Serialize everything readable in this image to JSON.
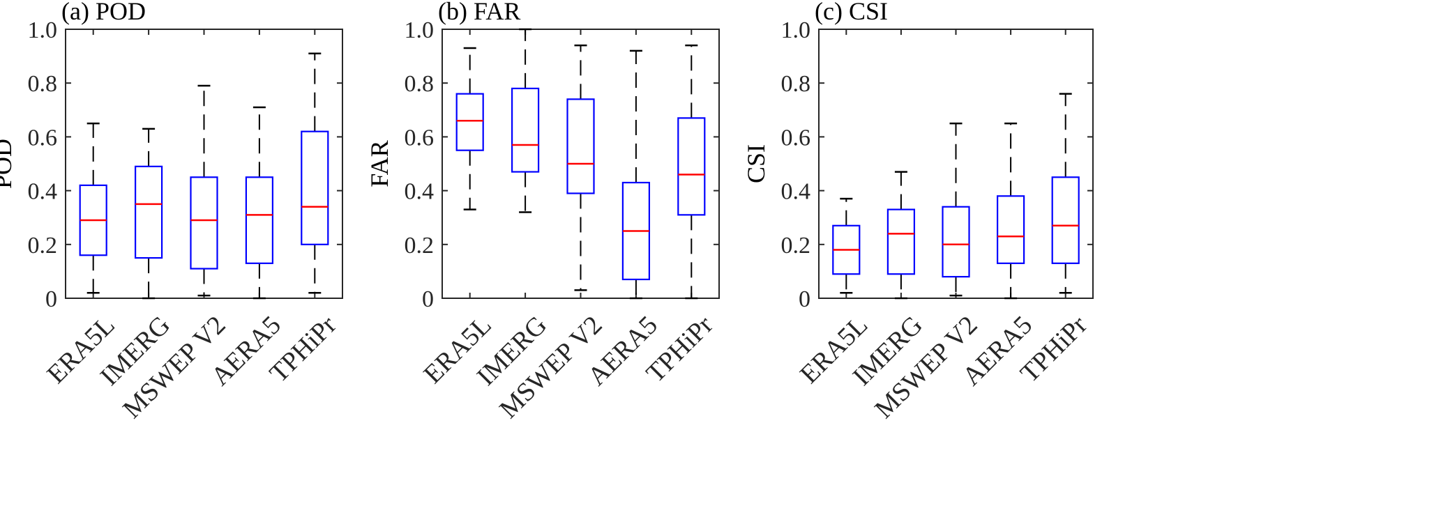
{
  "chart_data": [
    {
      "type": "box",
      "title": "(a) POD",
      "ylabel": "POD",
      "ylim": [
        0,
        1
      ],
      "yticks": [
        0,
        0.2,
        0.4,
        0.6,
        0.8,
        1.0
      ],
      "ytick_labels": [
        "0",
        "0.2",
        "0.4",
        "0.6",
        "0.8",
        "1.0"
      ],
      "categories": [
        "ERA5L",
        "IMERG",
        "MSWEP V2",
        "AERA5",
        "TPHiPr"
      ],
      "boxes": [
        {
          "whisker_low": 0.02,
          "q1": 0.16,
          "median": 0.29,
          "q3": 0.42,
          "whisker_high": 0.65
        },
        {
          "whisker_low": 0.0,
          "q1": 0.15,
          "median": 0.35,
          "q3": 0.49,
          "whisker_high": 0.63
        },
        {
          "whisker_low": 0.01,
          "q1": 0.11,
          "median": 0.29,
          "q3": 0.45,
          "whisker_high": 0.79
        },
        {
          "whisker_low": 0.0,
          "q1": 0.13,
          "median": 0.31,
          "q3": 0.45,
          "whisker_high": 0.71
        },
        {
          "whisker_low": 0.02,
          "q1": 0.2,
          "median": 0.34,
          "q3": 0.62,
          "whisker_high": 0.91
        }
      ]
    },
    {
      "type": "box",
      "title": "(b) FAR",
      "ylabel": "FAR",
      "ylim": [
        0,
        1
      ],
      "yticks": [
        0,
        0.2,
        0.4,
        0.6,
        0.8,
        1.0
      ],
      "ytick_labels": [
        "0",
        "0.2",
        "0.4",
        "0.6",
        "0.8",
        "1.0"
      ],
      "categories": [
        "ERA5L",
        "IMERG",
        "MSWEP V2",
        "AERA5",
        "TPHiPr"
      ],
      "boxes": [
        {
          "whisker_low": 0.33,
          "q1": 0.55,
          "median": 0.66,
          "q3": 0.76,
          "whisker_high": 0.93
        },
        {
          "whisker_low": 0.32,
          "q1": 0.47,
          "median": 0.57,
          "q3": 0.78,
          "whisker_high": 1.0
        },
        {
          "whisker_low": 0.03,
          "q1": 0.39,
          "median": 0.5,
          "q3": 0.74,
          "whisker_high": 0.94
        },
        {
          "whisker_low": 0.0,
          "q1": 0.07,
          "median": 0.25,
          "q3": 0.43,
          "whisker_high": 0.92
        },
        {
          "whisker_low": 0.0,
          "q1": 0.31,
          "median": 0.46,
          "q3": 0.67,
          "whisker_high": 0.94
        }
      ]
    },
    {
      "type": "box",
      "title": "(c) CSI",
      "ylabel": "CSI",
      "ylim": [
        0,
        1
      ],
      "yticks": [
        0,
        0.2,
        0.4,
        0.6,
        0.8,
        1.0
      ],
      "ytick_labels": [
        "0",
        "0.2",
        "0.4",
        "0.6",
        "0.8",
        "1.0"
      ],
      "categories": [
        "ERA5L",
        "IMERG",
        "MSWEP V2",
        "AERA5",
        "TPHiPr"
      ],
      "boxes": [
        {
          "whisker_low": 0.02,
          "q1": 0.09,
          "median": 0.18,
          "q3": 0.27,
          "whisker_high": 0.37
        },
        {
          "whisker_low": 0.0,
          "q1": 0.09,
          "median": 0.24,
          "q3": 0.33,
          "whisker_high": 0.47
        },
        {
          "whisker_low": 0.01,
          "q1": 0.08,
          "median": 0.2,
          "q3": 0.34,
          "whisker_high": 0.65
        },
        {
          "whisker_low": 0.0,
          "q1": 0.13,
          "median": 0.23,
          "q3": 0.38,
          "whisker_high": 0.65
        },
        {
          "whisker_low": 0.02,
          "q1": 0.13,
          "median": 0.27,
          "q3": 0.45,
          "whisker_high": 0.76
        }
      ]
    }
  ],
  "style": {
    "box_color": "#0000ff",
    "median_color": "#ff0000",
    "whisker_color": "#000000",
    "axis_color": "#262626"
  }
}
